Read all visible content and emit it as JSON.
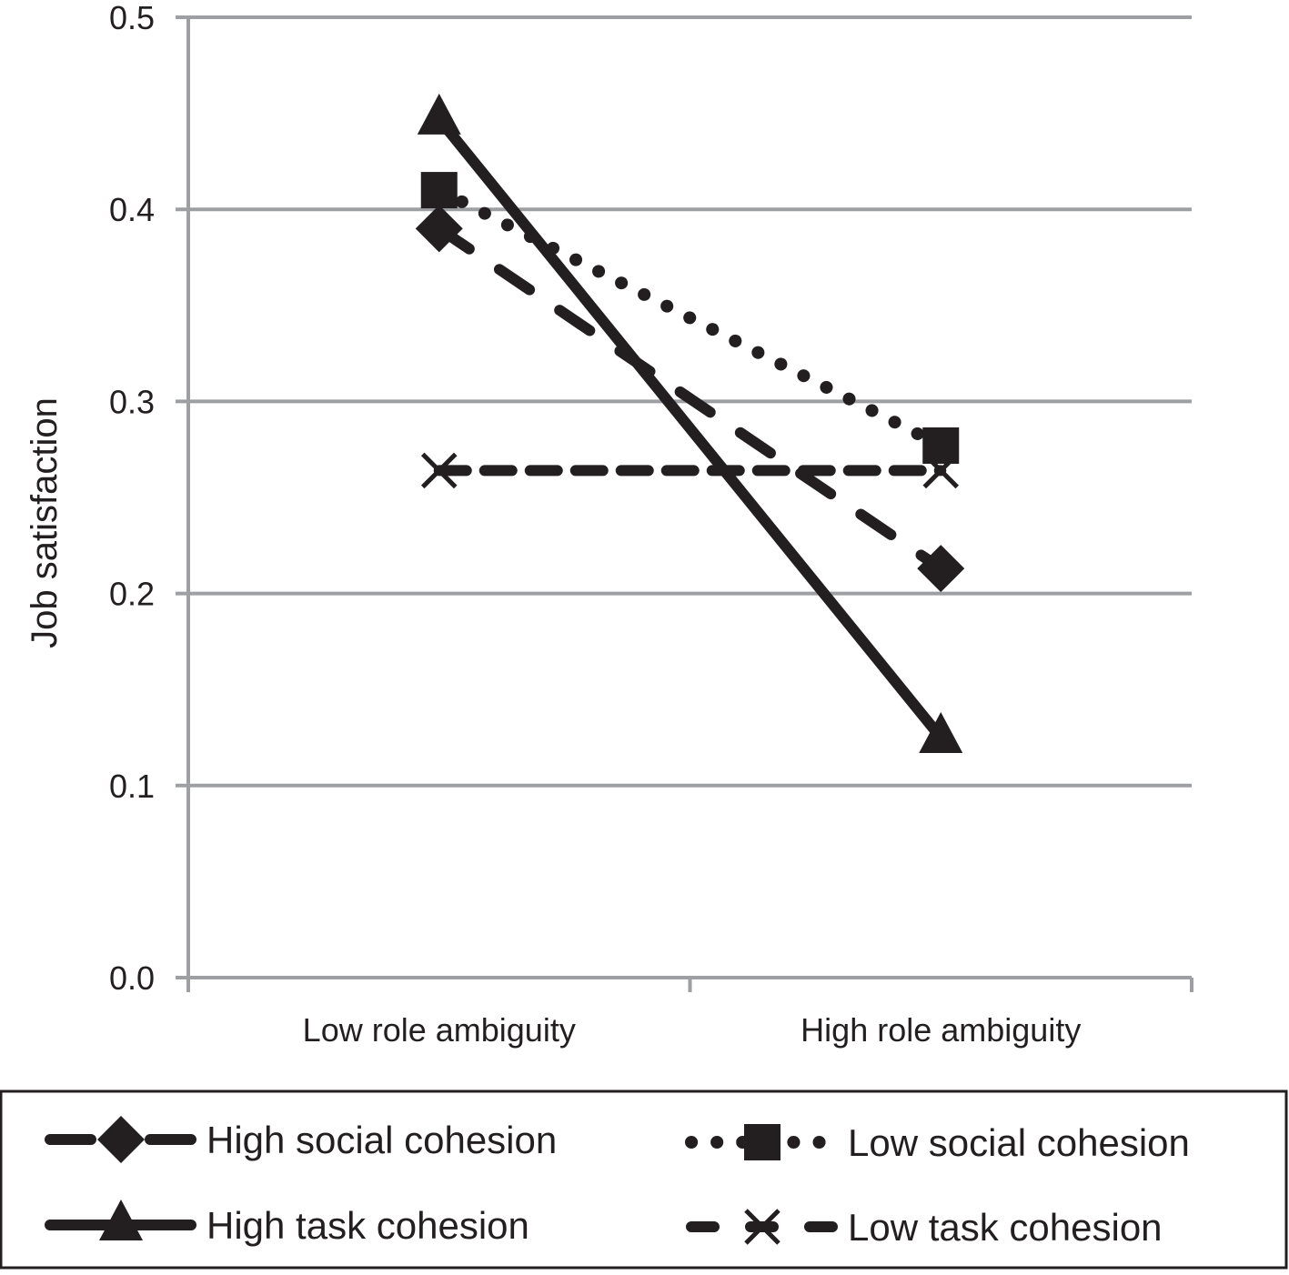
{
  "chart_data": {
    "type": "line",
    "ylabel": "Job satisfaction",
    "xlabel": "",
    "categories": [
      "Low role ambiguity",
      "High role ambiguity"
    ],
    "ylim": [
      0,
      0.5
    ],
    "yticks": [
      "0.0",
      "0.1",
      "0.2",
      "0.3",
      "0.4",
      "0.5"
    ],
    "grid": true,
    "legend_placement": "bottom",
    "series": [
      {
        "name": "High social cohesion",
        "values": [
          0.39,
          0.213
        ],
        "line": "long-dash",
        "marker": "diamond"
      },
      {
        "name": "Low social cohesion",
        "values": [
          0.41,
          0.277
        ],
        "line": "dotted",
        "marker": "square"
      },
      {
        "name": "High task cohesion",
        "values": [
          0.447,
          0.125
        ],
        "line": "solid",
        "marker": "triangle"
      },
      {
        "name": "Low task cohesion",
        "values": [
          0.264,
          0.264
        ],
        "line": "dashed",
        "marker": "x"
      }
    ],
    "colors": {
      "line": "#231f20",
      "grid": "#9d9fa2"
    }
  }
}
